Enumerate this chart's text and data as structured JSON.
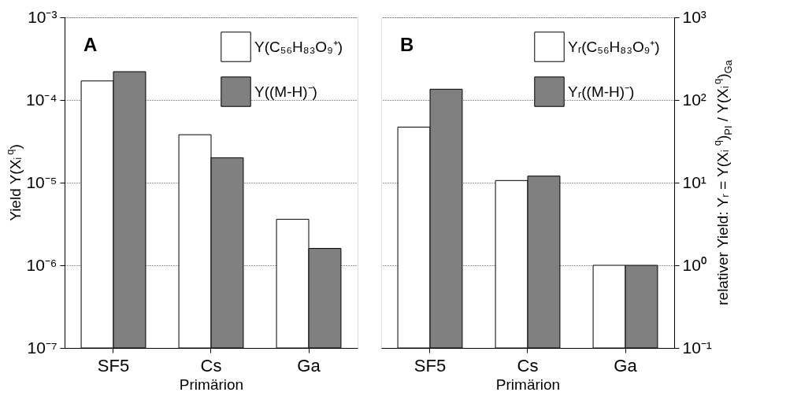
{
  "chart_data": [
    {
      "type": "bar",
      "categories": [
        "SF5",
        "Cs",
        "Ga"
      ],
      "xlabel": "Primärion",
      "ylabel": "Yield Y(Xᵢ$^{q}$)",
      "log": "y",
      "grid": "y",
      "legend": "top right",
      "annotations": [
        "A"
      ],
      "ylim": [
        1e-07,
        0.001
      ],
      "yticks": [
        {
          "value": 1e-07,
          "label": "10⁻⁷"
        },
        {
          "value": 1e-06,
          "label": "10⁻⁶"
        },
        {
          "value": 1e-05,
          "label": "10⁻⁵"
        },
        {
          "value": 0.0001,
          "label": "10⁻⁴"
        },
        {
          "value": 0.001,
          "label": "10⁻³"
        }
      ],
      "series": [
        {
          "name": "Y(C₅₆H₈₃O₉⁺)",
          "color": "#ffffff",
          "values": [
            0.00017,
            3.8e-05,
            3.6e-06
          ]
        },
        {
          "name": "Y((M-H)⁻)",
          "color": "#808080",
          "values": [
            0.00022,
            2e-05,
            1.6e-06
          ]
        }
      ]
    },
    {
      "type": "bar",
      "categories": [
        "SF5",
        "Cs",
        "Ga"
      ],
      "xlabel": "Primärion",
      "y2label": "relativer Yield: Yᵣ = Y(Xᵢ$^{q}$)$_{PI}$ / Y(Xᵢ$^{q}$)$_{Ga}$",
      "log": "y2",
      "grid": "y",
      "legend": "top right",
      "annotations": [
        "B"
      ],
      "y2lim": [
        0.1,
        1000
      ],
      "y2ticks": [
        {
          "value": 0.1,
          "label": "10⁻¹"
        },
        {
          "value": 1,
          "label": "10⁰"
        },
        {
          "value": 10,
          "label": "10¹"
        },
        {
          "value": 100,
          "label": "10²"
        },
        {
          "value": 1000,
          "label": "10³"
        }
      ],
      "series": [
        {
          "name": "Yᵣ(C₅₆H₈₃O₉⁺)",
          "color": "#ffffff",
          "values": [
            47,
            10.6,
            1
          ],
          "axis": "y2"
        },
        {
          "name": "Yᵣ((M-H)⁻)",
          "color": "#808080",
          "values": [
            135,
            12,
            1
          ],
          "axis": "y2"
        }
      ]
    }
  ]
}
